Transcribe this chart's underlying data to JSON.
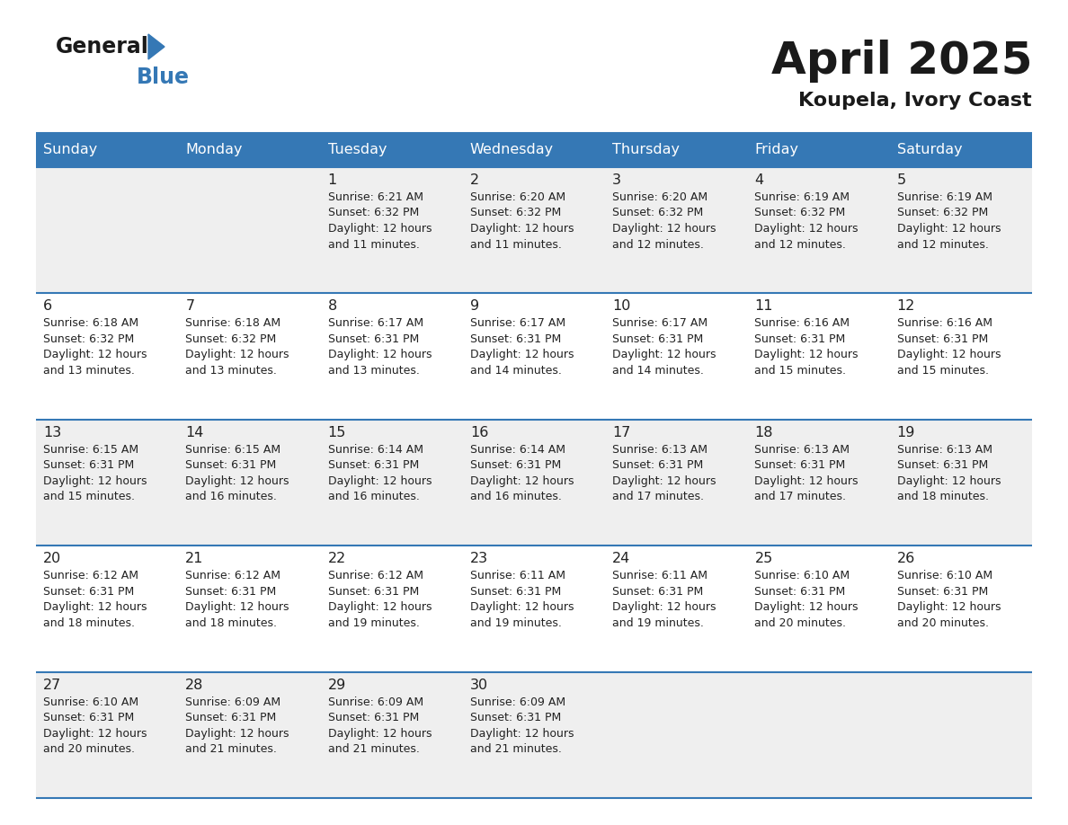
{
  "title": "April 2025",
  "subtitle": "Koupela, Ivory Coast",
  "header_color": "#3578B5",
  "header_text_color": "#FFFFFF",
  "day_names": [
    "Sunday",
    "Monday",
    "Tuesday",
    "Wednesday",
    "Thursday",
    "Friday",
    "Saturday"
  ],
  "bg_color": "#FFFFFF",
  "cell_bg_light": "#EFEFEF",
  "cell_bg_white": "#FFFFFF",
  "border_color": "#3578B5",
  "text_color": "#222222",
  "logo_general_color": "#1a1a1a",
  "logo_blue_color": "#3578B5",
  "logo_triangle_color": "#3578B5",
  "title_color": "#1a1a1a",
  "subtitle_color": "#1a1a1a",
  "days": [
    {
      "date": 1,
      "col": 2,
      "row": 0,
      "sunrise": "6:21 AM",
      "sunset": "6:32 PM",
      "daylight_mins": "11"
    },
    {
      "date": 2,
      "col": 3,
      "row": 0,
      "sunrise": "6:20 AM",
      "sunset": "6:32 PM",
      "daylight_mins": "11"
    },
    {
      "date": 3,
      "col": 4,
      "row": 0,
      "sunrise": "6:20 AM",
      "sunset": "6:32 PM",
      "daylight_mins": "12"
    },
    {
      "date": 4,
      "col": 5,
      "row": 0,
      "sunrise": "6:19 AM",
      "sunset": "6:32 PM",
      "daylight_mins": "12"
    },
    {
      "date": 5,
      "col": 6,
      "row": 0,
      "sunrise": "6:19 AM",
      "sunset": "6:32 PM",
      "daylight_mins": "12"
    },
    {
      "date": 6,
      "col": 0,
      "row": 1,
      "sunrise": "6:18 AM",
      "sunset": "6:32 PM",
      "daylight_mins": "13"
    },
    {
      "date": 7,
      "col": 1,
      "row": 1,
      "sunrise": "6:18 AM",
      "sunset": "6:32 PM",
      "daylight_mins": "13"
    },
    {
      "date": 8,
      "col": 2,
      "row": 1,
      "sunrise": "6:17 AM",
      "sunset": "6:31 PM",
      "daylight_mins": "13"
    },
    {
      "date": 9,
      "col": 3,
      "row": 1,
      "sunrise": "6:17 AM",
      "sunset": "6:31 PM",
      "daylight_mins": "14"
    },
    {
      "date": 10,
      "col": 4,
      "row": 1,
      "sunrise": "6:17 AM",
      "sunset": "6:31 PM",
      "daylight_mins": "14"
    },
    {
      "date": 11,
      "col": 5,
      "row": 1,
      "sunrise": "6:16 AM",
      "sunset": "6:31 PM",
      "daylight_mins": "15"
    },
    {
      "date": 12,
      "col": 6,
      "row": 1,
      "sunrise": "6:16 AM",
      "sunset": "6:31 PM",
      "daylight_mins": "15"
    },
    {
      "date": 13,
      "col": 0,
      "row": 2,
      "sunrise": "6:15 AM",
      "sunset": "6:31 PM",
      "daylight_mins": "15"
    },
    {
      "date": 14,
      "col": 1,
      "row": 2,
      "sunrise": "6:15 AM",
      "sunset": "6:31 PM",
      "daylight_mins": "16"
    },
    {
      "date": 15,
      "col": 2,
      "row": 2,
      "sunrise": "6:14 AM",
      "sunset": "6:31 PM",
      "daylight_mins": "16"
    },
    {
      "date": 16,
      "col": 3,
      "row": 2,
      "sunrise": "6:14 AM",
      "sunset": "6:31 PM",
      "daylight_mins": "16"
    },
    {
      "date": 17,
      "col": 4,
      "row": 2,
      "sunrise": "6:13 AM",
      "sunset": "6:31 PM",
      "daylight_mins": "17"
    },
    {
      "date": 18,
      "col": 5,
      "row": 2,
      "sunrise": "6:13 AM",
      "sunset": "6:31 PM",
      "daylight_mins": "17"
    },
    {
      "date": 19,
      "col": 6,
      "row": 2,
      "sunrise": "6:13 AM",
      "sunset": "6:31 PM",
      "daylight_mins": "18"
    },
    {
      "date": 20,
      "col": 0,
      "row": 3,
      "sunrise": "6:12 AM",
      "sunset": "6:31 PM",
      "daylight_mins": "18"
    },
    {
      "date": 21,
      "col": 1,
      "row": 3,
      "sunrise": "6:12 AM",
      "sunset": "6:31 PM",
      "daylight_mins": "18"
    },
    {
      "date": 22,
      "col": 2,
      "row": 3,
      "sunrise": "6:12 AM",
      "sunset": "6:31 PM",
      "daylight_mins": "19"
    },
    {
      "date": 23,
      "col": 3,
      "row": 3,
      "sunrise": "6:11 AM",
      "sunset": "6:31 PM",
      "daylight_mins": "19"
    },
    {
      "date": 24,
      "col": 4,
      "row": 3,
      "sunrise": "6:11 AM",
      "sunset": "6:31 PM",
      "daylight_mins": "19"
    },
    {
      "date": 25,
      "col": 5,
      "row": 3,
      "sunrise": "6:10 AM",
      "sunset": "6:31 PM",
      "daylight_mins": "20"
    },
    {
      "date": 26,
      "col": 6,
      "row": 3,
      "sunrise": "6:10 AM",
      "sunset": "6:31 PM",
      "daylight_mins": "20"
    },
    {
      "date": 27,
      "col": 0,
      "row": 4,
      "sunrise": "6:10 AM",
      "sunset": "6:31 PM",
      "daylight_mins": "20"
    },
    {
      "date": 28,
      "col": 1,
      "row": 4,
      "sunrise": "6:09 AM",
      "sunset": "6:31 PM",
      "daylight_mins": "21"
    },
    {
      "date": 29,
      "col": 2,
      "row": 4,
      "sunrise": "6:09 AM",
      "sunset": "6:31 PM",
      "daylight_mins": "21"
    },
    {
      "date": 30,
      "col": 3,
      "row": 4,
      "sunrise": "6:09 AM",
      "sunset": "6:31 PM",
      "daylight_mins": "21"
    }
  ]
}
